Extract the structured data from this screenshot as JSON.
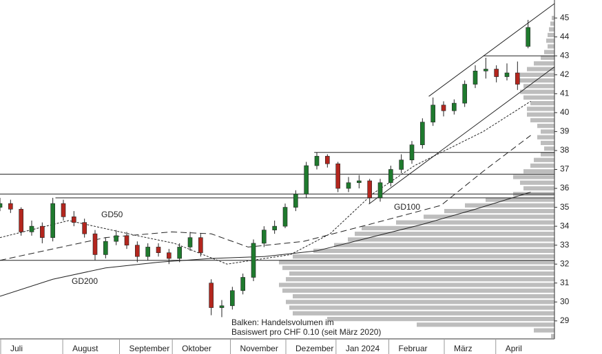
{
  "chart_data": {
    "type": "candlestick",
    "x": [
      0,
      4,
      8,
      12,
      16,
      20,
      24,
      28,
      32,
      36,
      40,
      44,
      48,
      52,
      56,
      60,
      64,
      68,
      72,
      76,
      80,
      84,
      88,
      92,
      96,
      100,
      104,
      108,
      112,
      116,
      120,
      124,
      128,
      132,
      136,
      140,
      144,
      148,
      152,
      156,
      160,
      164,
      168,
      172,
      176,
      180,
      184,
      188,
      192,
      196,
      200
    ],
    "open": [
      35.0,
      35.2,
      34.9,
      33.7,
      34.0,
      33.4,
      35.2,
      34.5,
      34.2,
      33.6,
      32.5,
      33.2,
      33.5,
      33.0,
      32.4,
      32.9,
      32.6,
      32.3,
      32.9,
      33.4,
      31.0,
      29.7,
      29.8,
      30.6,
      31.3,
      33.1,
      33.8,
      34.0,
      35.0,
      35.7,
      37.2,
      37.7,
      37.3,
      36.0,
      36.3,
      36.4,
      35.5,
      36.3,
      37.0,
      37.5,
      38.3,
      39.5,
      40.4,
      40.1,
      40.5,
      41.5,
      42.2,
      42.3,
      41.9,
      42.1,
      43.5
    ],
    "high": [
      35.5,
      35.4,
      35.0,
      34.3,
      34.2,
      35.5,
      35.4,
      34.8,
      34.4,
      33.8,
      33.4,
      33.8,
      33.7,
      33.2,
      33.1,
      33.1,
      32.8,
      33.1,
      33.7,
      33.6,
      31.2,
      30.1,
      30.8,
      31.5,
      33.3,
      34.0,
      34.3,
      35.2,
      35.9,
      37.4,
      37.9,
      37.8,
      37.4,
      36.6,
      36.7,
      36.5,
      36.5,
      37.2,
      37.8,
      38.5,
      39.7,
      40.8,
      40.6,
      40.7,
      41.7,
      42.5,
      42.9,
      42.5,
      42.6,
      42.7,
      44.9
    ],
    "low": [
      34.8,
      34.7,
      33.5,
      33.5,
      33.1,
      33.2,
      34.3,
      34.0,
      33.4,
      32.2,
      32.3,
      33.0,
      32.8,
      32.1,
      32.2,
      32.4,
      32.0,
      32.1,
      32.7,
      32.4,
      29.3,
      29.2,
      29.6,
      30.4,
      31.1,
      32.9,
      33.6,
      33.9,
      34.8,
      35.5,
      37.0,
      37.1,
      35.8,
      35.8,
      36.0,
      35.2,
      35.3,
      36.1,
      36.8,
      37.3,
      38.1,
      39.3,
      39.8,
      39.9,
      40.3,
      41.3,
      41.8,
      41.6,
      41.7,
      41.2,
      43.4
    ],
    "close": [
      35.2,
      34.9,
      33.7,
      34.0,
      33.4,
      35.2,
      34.5,
      34.2,
      33.6,
      32.5,
      33.2,
      33.5,
      33.0,
      32.4,
      32.9,
      32.6,
      32.3,
      32.9,
      33.4,
      32.6,
      29.7,
      29.8,
      30.6,
      31.3,
      33.1,
      33.8,
      34.0,
      35.0,
      35.7,
      37.2,
      37.7,
      37.3,
      36.0,
      36.3,
      36.4,
      35.5,
      36.3,
      37.0,
      37.5,
      38.3,
      39.5,
      40.4,
      40.1,
      40.5,
      41.5,
      42.2,
      42.3,
      41.9,
      42.1,
      41.5,
      44.5
    ],
    "up_color": "#1f7a2e",
    "down_color": "#b3261e",
    "xlim": [
      0,
      210
    ],
    "xticks": [
      {
        "value": 0,
        "label": "Juli"
      },
      {
        "value": 23.5,
        "label": "August"
      },
      {
        "value": 45,
        "label": "September"
      },
      {
        "value": 65,
        "label": "Oktober"
      },
      {
        "value": 87,
        "label": "November"
      },
      {
        "value": 108,
        "label": "Dezember"
      },
      {
        "value": 127,
        "label": "Jan 2024"
      },
      {
        "value": 147,
        "label": "Februar"
      },
      {
        "value": 168,
        "label": "März"
      },
      {
        "value": 187.5,
        "label": "April"
      }
    ],
    "ylim": [
      28.05,
      45.95
    ],
    "yticks": [
      29,
      30,
      31,
      32,
      33,
      34,
      35,
      36,
      37,
      38,
      39,
      40,
      41,
      42,
      43,
      44,
      45
    ],
    "moving_averages": [
      {
        "name": "GD50",
        "x": [
          0,
          26,
          52,
          66,
          86,
          110,
          125,
          141,
          157,
          183,
          201
        ],
        "values": [
          33.4,
          34.3,
          33.5,
          33.1,
          32.0,
          32.5,
          33.6,
          35.7,
          37.2,
          39.0,
          40.6
        ]
      },
      {
        "name": "GD100",
        "x": [
          0,
          20,
          40,
          65,
          80,
          94,
          115,
          140,
          167,
          183,
          201
        ],
        "values": [
          32.2,
          32.8,
          33.4,
          33.7,
          33.6,
          32.9,
          33.2,
          34.1,
          35.1,
          36.9,
          38.8
        ]
      },
      {
        "name": "GD200",
        "x": [
          0,
          20,
          40,
          60,
          80,
          100,
          120,
          140,
          160,
          180,
          201
        ],
        "values": [
          30.3,
          31.2,
          31.8,
          32.1,
          32.3,
          32.4,
          32.7,
          33.4,
          34.1,
          34.9,
          35.8
        ]
      }
    ],
    "levels": [
      {
        "value": 32.2,
        "from": 0,
        "to": 210
      },
      {
        "value": 36.75,
        "from": 0,
        "to": 210
      },
      {
        "value": 35.7,
        "from": 0,
        "to": 210
      },
      {
        "value": 35.5,
        "from": 21,
        "to": 210
      },
      {
        "value": 37.9,
        "from": 119,
        "to": 210
      },
      {
        "value": 43.0,
        "from": 183,
        "to": 210
      }
    ],
    "trendlines": [
      {
        "x": [
          162.4,
          210
        ],
        "values": [
          40.86,
          45.76
        ]
      },
      {
        "x": [
          139.7,
          210
        ],
        "values": [
          35.17,
          42.42
        ]
      }
    ],
    "volume_profile": {
      "color": "#bdbdbd",
      "vlim": [
        0,
        805
      ],
      "prices": [
        28.2,
        28.5,
        28.8,
        29.1,
        29.4,
        29.7,
        30.0,
        30.3,
        30.6,
        30.9,
        31.2,
        31.5,
        31.8,
        32.1,
        32.4,
        32.7,
        33.0,
        33.3,
        33.6,
        33.9,
        34.2,
        34.5,
        34.8,
        35.1,
        35.4,
        35.7,
        36.0,
        36.3,
        36.6,
        36.9,
        37.2,
        37.5,
        37.8,
        38.1,
        38.4,
        38.7,
        39.0,
        39.3,
        39.6,
        39.9,
        40.2,
        40.5,
        40.8,
        41.1,
        41.4,
        41.7,
        42.0,
        42.3,
        42.6,
        42.9,
        43.2,
        43.5,
        43.8,
        44.1,
        44.4,
        44.7,
        45.0
      ],
      "values": [
        5,
        30,
        200,
        330,
        380,
        385,
        390,
        380,
        395,
        400,
        390,
        385,
        395,
        400,
        380,
        350,
        320,
        300,
        290,
        280,
        230,
        190,
        160,
        130,
        100,
        60,
        45,
        50,
        60,
        45,
        35,
        30,
        20,
        15,
        20,
        25,
        20,
        25,
        35,
        40,
        40,
        35,
        45,
        50,
        45,
        55,
        50,
        40,
        30,
        20,
        15,
        10,
        12,
        10,
        8,
        6,
        4
      ]
    },
    "annotation": [
      "Balken: Handelsvolumen im",
      "Basiswert pro CHF 0.10 (seit März 2020)"
    ]
  }
}
